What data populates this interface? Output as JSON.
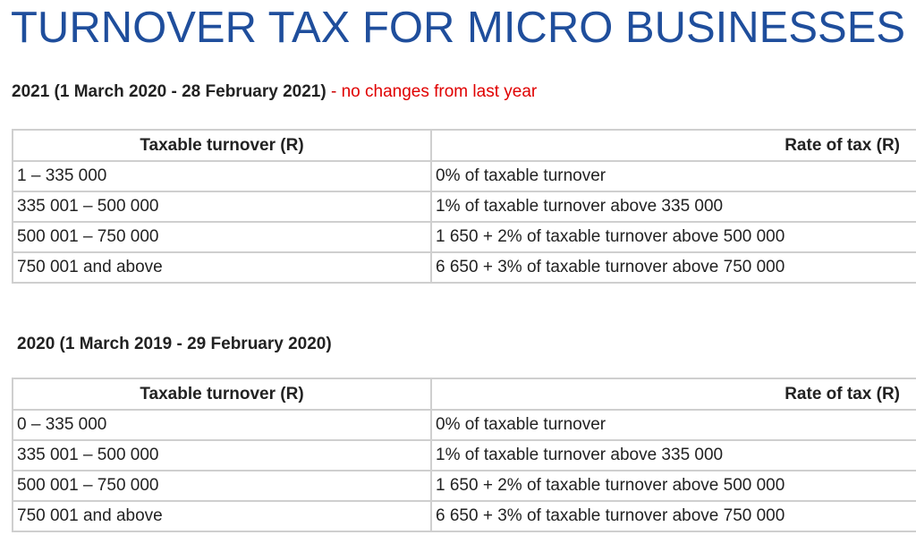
{
  "page": {
    "title": "TURNOVER TAX FOR MICRO BUSINESSES"
  },
  "sections": [
    {
      "period": "2021 (1 March 2020 - 28 February 2021)",
      "separator": " - ",
      "note": "no changes from last year",
      "table": {
        "headers": [
          "Taxable turnover (R)",
          "Rate of tax (R)"
        ],
        "rows": [
          [
            "1 – 335 000",
            "0% of taxable turnover"
          ],
          [
            "335 001 – 500 000",
            "1% of taxable turnover above 335 000"
          ],
          [
            "500 001 – 750 000",
            "1 650 + 2% of taxable turnover above 500 000"
          ],
          [
            "750 001 and above",
            "6 650 + 3% of taxable turnover above 750 000"
          ]
        ]
      }
    },
    {
      "period": "2020 (1 March 2019 - 29 February 2020)",
      "table": {
        "headers": [
          "Taxable turnover (R)",
          "Rate of tax (R)"
        ],
        "rows": [
          [
            "0 – 335 000",
            "0% of taxable turnover"
          ],
          [
            "335 001 – 500 000",
            "1% of taxable turnover above 335 000"
          ],
          [
            "500 001 – 750 000",
            "1 650 + 2% of taxable turnover above 500 000"
          ],
          [
            "750 001 and above",
            "6 650 + 3% of taxable turnover above 750 000"
          ]
        ]
      }
    }
  ],
  "colors": {
    "title": "#1f4e9c",
    "note": "#e00000",
    "border": "#cfcfcf",
    "text": "#222222"
  }
}
